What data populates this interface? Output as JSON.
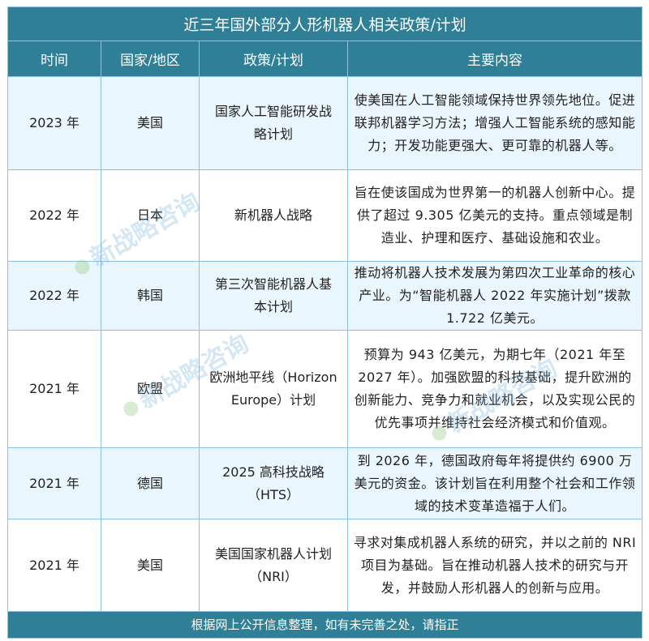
{
  "title": "近三年国外部分人形机器人相关政策/计划",
  "columns": [
    "时间",
    "国家/地区",
    "政策/计划",
    "主要内容"
  ],
  "rows": [
    {
      "time": "2023 年",
      "country": "美国",
      "policy": "国家人工智能研发战略计划",
      "content": "使美国在人工智能领域保持世界领先地位。促进联邦机器学习方法；增强人工智能系统的感知能力；开发功能更强大、更可靠的机器人等。"
    },
    {
      "time": "2022 年",
      "country": "日本",
      "policy": "新机器人战略",
      "content": "旨在使该国成为世界第一的机器人创新中心。提供了超过 9.305 亿美元的支持。重点领域是制造业、护理和医疗、基础设施和农业。"
    },
    {
      "time": "2022 年",
      "country": "韩国",
      "policy": "第三次智能机器人基本计划",
      "content": "推动将机器人技术发展为第四次工业革命的核心产业。为“智能机器人 2022 年实施计划”拨款 1.722 亿美元。"
    },
    {
      "time": "2021 年",
      "country": "欧盟",
      "policy": "欧洲地平线（Horizon Europe）计划",
      "content": "预算为 943 亿美元，为期七年（2021 年至 2027 年）。加强欧盟的科技基础，提升欧洲的创新能力、竞争力和就业机会，以及实现公民的优先事项并维持社会经济模式和价值观。"
    },
    {
      "time": "2021 年",
      "country": "德国",
      "policy": "2025 高科技战略（HTS）",
      "content": "到 2026 年，德国政府每年将提供约 6900 万美元的资金。该计划旨在利用整个社会和工作领域的技术变革造福于人们。"
    },
    {
      "time": "2021 年",
      "country": "美国",
      "policy": "美国国家机器人计划（NRI）",
      "content": "寻求对集成机器人系统的研究，并以之前的 NRI 项目为基础。旨在推动机器人技术的研究与开发，并鼓励人形机器人的创新与应用。"
    }
  ],
  "footer": "根据网上公开信息整理，如有未完善之处，请指正",
  "watermark": "新战略咨询",
  "colors": {
    "header": "#2f7f96",
    "row_alt": "#eaf6fd",
    "border": "#8cc0e6"
  }
}
